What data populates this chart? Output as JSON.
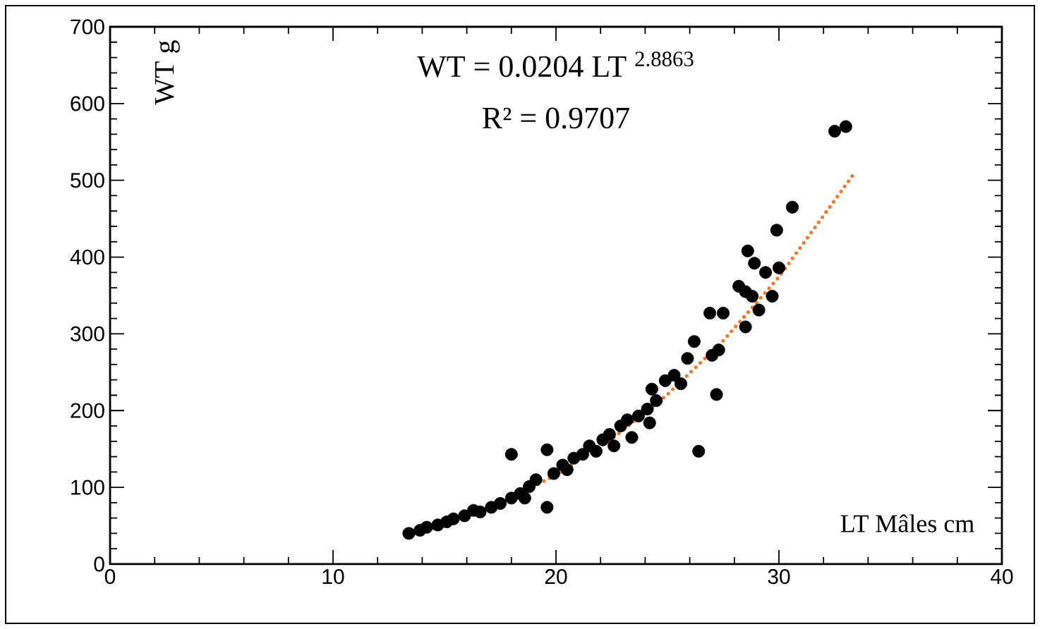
{
  "chart_data": {
    "type": "scatter",
    "xlabel": "LT Mâles cm",
    "ylabel": "WT g",
    "annotations": [
      "WT = 0.0204 LT $^{2.8863}$",
      "R² = 0.9707"
    ],
    "xlim": [
      0,
      40
    ],
    "ylim": [
      0,
      700
    ],
    "xticks": [
      0,
      10,
      20,
      30,
      40
    ],
    "yticks": [
      0,
      100,
      200,
      300,
      400,
      500,
      600,
      700
    ],
    "grid": false,
    "marker": "circle",
    "series": [
      {
        "color": "#000000",
        "x": [
          13.4,
          13.9,
          14.2,
          14.7,
          15.1,
          15.4,
          15.9,
          16.3,
          16.6,
          17.1,
          17.5,
          18.0,
          18.4,
          18.6,
          18.0,
          19.6,
          19.6,
          18.8,
          19.1,
          19.9,
          20.3,
          20.5,
          20.8,
          21.2,
          21.5,
          21.8,
          22.1,
          22.4,
          22.6,
          22.9,
          23.2,
          23.4,
          23.7,
          24.1,
          24.2,
          24.3,
          24.5,
          24.9,
          25.3,
          25.6,
          25.9,
          26.2,
          27.2,
          26.4,
          27.0,
          27.3,
          26.9,
          27.5,
          28.5,
          28.8,
          29.1,
          29.7,
          28.6,
          28.9,
          29.4,
          30.0,
          29.9,
          30.6,
          32.5,
          33.0,
          28.2,
          28.5
        ],
        "values": [
          40,
          44,
          48,
          51,
          55,
          59,
          63,
          70,
          68,
          74,
          79,
          86,
          92,
          86,
          143,
          149,
          74,
          101,
          110,
          118,
          129,
          123,
          138,
          143,
          154,
          147,
          162,
          169,
          154,
          180,
          188,
          165,
          193,
          202,
          184,
          228,
          213,
          239,
          246,
          235,
          268,
          290,
          221,
          147,
          272,
          279,
          327,
          327,
          309,
          349,
          331,
          349,
          408,
          392,
          380,
          386,
          435,
          465,
          564,
          570,
          362,
          355
        ]
      },
      {
        "type": "line",
        "color": "#ed7d31",
        "line_style": "dotted",
        "marker": "none",
        "x": [
          13.4,
          15,
          17,
          20,
          22.5,
          25,
          27.5,
          30,
          33.3
        ],
        "values": [
          37,
          51,
          73,
          116,
          163,
          221,
          291,
          374,
          506
        ]
      }
    ]
  }
}
